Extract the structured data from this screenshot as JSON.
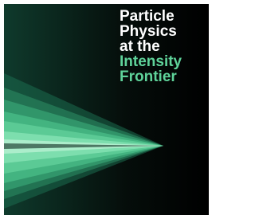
{
  "cover": {
    "title_lines": [
      "Particle",
      "Physics",
      "at the",
      "Intensity",
      "Frontier"
    ]
  }
}
